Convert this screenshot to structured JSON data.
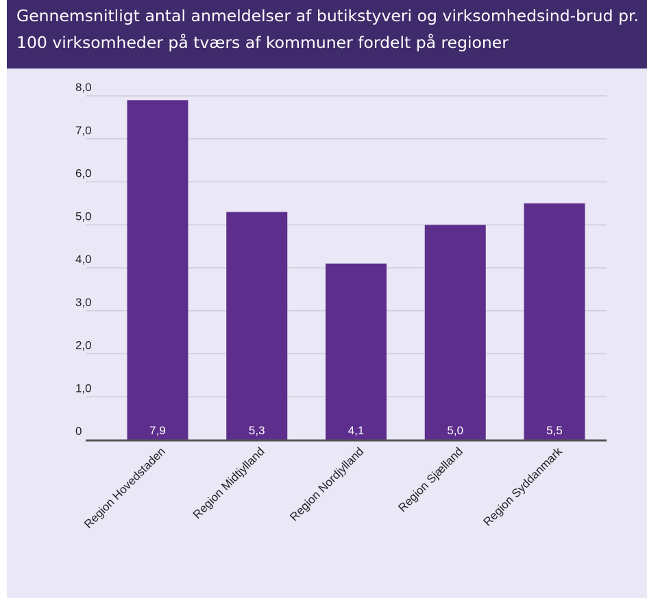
{
  "chart_data": {
    "type": "bar",
    "title": "Gennemsnitligt antal anmeldelser af butikstyveri og virksomhedsind-brud pr. 100 virksomheder på tværs af kommuner fordelt på regioner",
    "categories": [
      "Region Hovedstaden",
      "Region Midtjylland",
      "Region Nordjylland",
      "Region Sjælland",
      "Region Syddanmark"
    ],
    "values": [
      7.9,
      5.3,
      4.1,
      5.0,
      5.5
    ],
    "data_labels": [
      "7,9",
      "5,3",
      "4,1",
      "5,0",
      "5,5"
    ],
    "xlabel": "",
    "ylabel": "",
    "ylim": [
      0,
      8
    ],
    "yticks": [
      0,
      1,
      2,
      3,
      4,
      5,
      6,
      7,
      8
    ],
    "ytick_labels": [
      "0",
      "1,0",
      "2,0",
      "3,0",
      "4,0",
      "5,0",
      "6,0",
      "7,0",
      "8,0"
    ],
    "grid": true,
    "legend": "none",
    "colors": {
      "bar": "#5d2e8c",
      "title_background": "#3f2a6b",
      "plot_background": "#eae7f7",
      "gridline": "#c9c6d6",
      "axis": "#555555"
    }
  }
}
